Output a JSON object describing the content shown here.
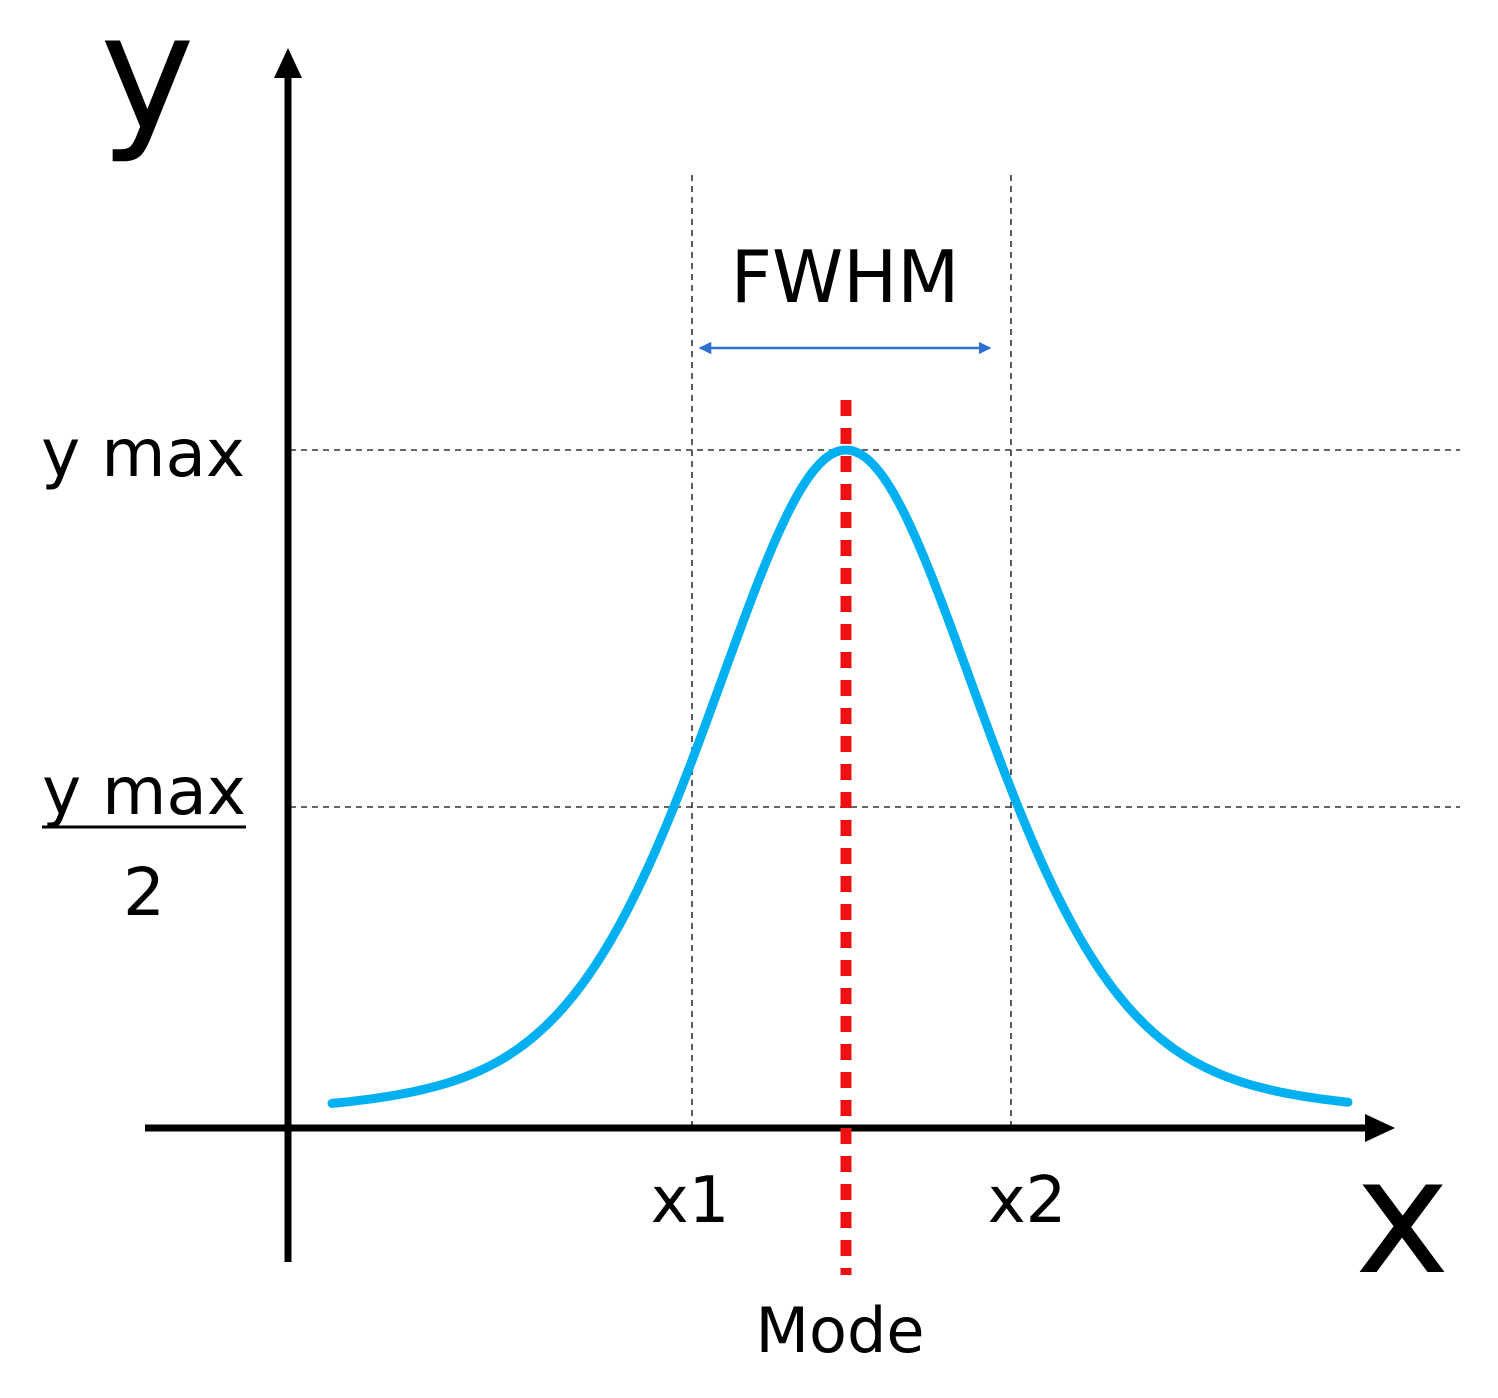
{
  "figure": {
    "y_axis_label": "y",
    "x_axis_label": "x",
    "y_max_label": "y max",
    "half_max_numerator": "y max",
    "half_max_denominator": "2",
    "x1_label": "x1",
    "x2_label": "x2",
    "fwhm_label": "FWHM",
    "mode_label": "Mode"
  },
  "colors": {
    "curve": "#00b0f0",
    "mode_line": "#ee1111",
    "fwhm_arrow": "#2e6fd4",
    "axes": "#000000",
    "guides": "#333333"
  },
  "icons": {
    "y_axis_arrow": "arrow-up-icon",
    "x_axis_arrow": "arrow-right-icon",
    "fwhm_arrow": "double-arrow-icon"
  }
}
